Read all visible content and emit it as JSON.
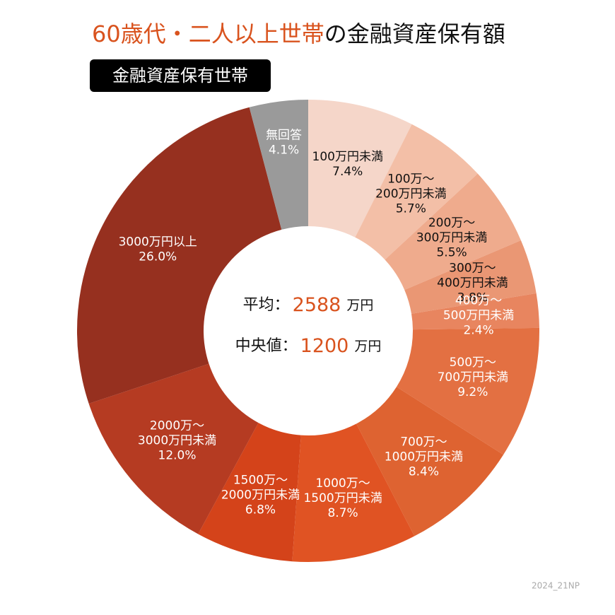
{
  "chart_data": {
    "type": "donut",
    "title_parts": [
      {
        "text": "60歳代・二人以上世帯",
        "color": "#d9531e"
      },
      {
        "text": "の金融資産保有額",
        "color": "#111111"
      }
    ],
    "subtitle": "金融資産保有世帯",
    "categories": [
      "100万円未満",
      "100万〜200万円未満",
      "200万〜300万円未満",
      "300万〜400万円未満",
      "400万〜500万円未満",
      "500万〜700万円未満",
      "700万〜1000万円未満",
      "1000万〜1500万円未満",
      "1500万〜2000万円未満",
      "2000万〜3000万円未満",
      "3000万円以上",
      "無回答"
    ],
    "values": [
      7.4,
      5.7,
      5.5,
      3.8,
      2.4,
      9.2,
      8.4,
      8.7,
      6.8,
      12.0,
      26.0,
      4.1
    ],
    "value_labels": [
      "7.4%",
      "5.7%",
      "5.5%",
      "3.8%",
      "2.4%",
      "9.2%",
      "8.4%",
      "8.7%",
      "6.8%",
      "12.0%",
      "26.0%",
      "4.1%"
    ],
    "colors": [
      "#f5d6c9",
      "#f3bfa7",
      "#efab8d",
      "#ea9774",
      "#e8855f",
      "#e37042",
      "#de6331",
      "#e05323",
      "#d4431a",
      "#b53b22",
      "#96301f",
      "#9a9a9a"
    ],
    "label_colors": [
      "#111",
      "#111",
      "#111",
      "#111",
      "#fff",
      "#fff",
      "#fff",
      "#fff",
      "#fff",
      "#fff",
      "#fff",
      "#fff"
    ],
    "center": [
      {
        "label": "平均：",
        "value": 2588,
        "unit": "万円"
      },
      {
        "label": "中央値：",
        "value": 1200,
        "unit": "万円"
      }
    ],
    "footer": "2024_21NP"
  }
}
